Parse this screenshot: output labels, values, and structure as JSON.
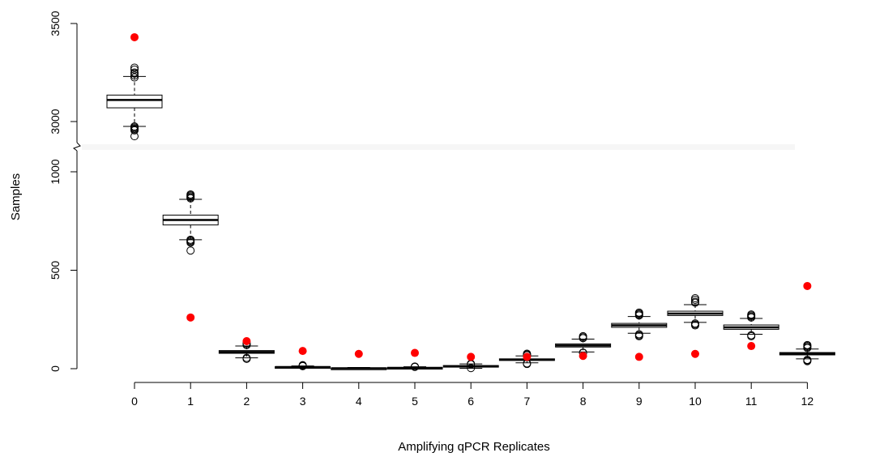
{
  "chart_data": {
    "type": "boxplot",
    "xlabel": "Amplifying qPCR Replicates",
    "ylabel": "Samples",
    "x_categories": [
      "0",
      "1",
      "2",
      "3",
      "4",
      "5",
      "6",
      "7",
      "8",
      "9",
      "10",
      "11",
      "12"
    ],
    "y_axis": {
      "broken": true,
      "segments": [
        {
          "range": [
            0,
            1050
          ],
          "ticks": [
            0,
            500,
            1000
          ],
          "tick_labels": [
            "0",
            "500",
            "1000"
          ]
        },
        {
          "range": [
            2880,
            3500
          ],
          "ticks": [
            3000,
            3500
          ],
          "tick_labels": [
            "3000",
            "3500"
          ]
        }
      ]
    },
    "boxes": [
      {
        "x": "0",
        "whisker_low": 2975,
        "q1": 3070,
        "median": 3110,
        "q3": 3135,
        "whisker_high": 3230,
        "outliers": [
          2955,
          2960,
          2965,
          2970,
          2975,
          2925,
          3225,
          3235,
          3245,
          3250,
          3265,
          3275
        ],
        "observed": 3430
      },
      {
        "x": "1",
        "whisker_low": 655,
        "q1": 730,
        "median": 755,
        "q3": 780,
        "whisker_high": 860,
        "outliers": [
          600,
          640,
          645,
          650,
          655,
          865,
          870,
          875,
          880,
          885
        ],
        "observed": 260
      },
      {
        "x": "2",
        "whisker_low": 55,
        "q1": 78,
        "median": 85,
        "q3": 92,
        "whisker_high": 115,
        "outliers": [
          50,
          55,
          120,
          125,
          130
        ],
        "observed": 140
      },
      {
        "x": "3",
        "whisker_low": 2,
        "q1": 6,
        "median": 8,
        "q3": 10,
        "whisker_high": 14,
        "outliers": [
          13,
          16,
          18
        ],
        "observed": 90
      },
      {
        "x": "4",
        "whisker_low": 0,
        "q1": 1,
        "median": 2,
        "q3": 3,
        "whisker_high": 6,
        "outliers": [],
        "observed": 75
      },
      {
        "x": "5",
        "whisker_low": 0,
        "q1": 2,
        "median": 4,
        "q3": 6,
        "whisker_high": 10,
        "outliers": [
          9,
          11
        ],
        "observed": 80
      },
      {
        "x": "6",
        "whisker_low": 2,
        "q1": 9,
        "median": 12,
        "q3": 16,
        "whisker_high": 24,
        "outliers": [
          3,
          22,
          25
        ],
        "observed": 60
      },
      {
        "x": "7",
        "whisker_low": 30,
        "q1": 42,
        "median": 46,
        "q3": 50,
        "whisker_high": 65,
        "outliers": [
          24,
          27,
          68,
          72,
          76
        ],
        "observed": 60
      },
      {
        "x": "8",
        "whisker_low": 85,
        "q1": 110,
        "median": 118,
        "q3": 126,
        "whisker_high": 150,
        "outliers": [
          80,
          82,
          155,
          160,
          165
        ],
        "observed": 65
      },
      {
        "x": "9",
        "whisker_low": 180,
        "q1": 210,
        "median": 220,
        "q3": 230,
        "whisker_high": 265,
        "outliers": [
          165,
          170,
          175,
          270,
          275,
          280,
          285
        ],
        "observed": 60
      },
      {
        "x": "10",
        "whisker_low": 235,
        "q1": 270,
        "median": 280,
        "q3": 292,
        "whisker_high": 325,
        "outliers": [
          220,
          225,
          230,
          335,
          340,
          350,
          358
        ],
        "observed": 75
      },
      {
        "x": "11",
        "whisker_low": 175,
        "q1": 200,
        "median": 210,
        "q3": 222,
        "whisker_high": 255,
        "outliers": [
          165,
          170,
          260,
          265,
          270,
          275
        ],
        "observed": 115
      },
      {
        "x": "12",
        "whisker_low": 50,
        "q1": 70,
        "median": 76,
        "q3": 82,
        "whisker_high": 100,
        "outliers": [
          38,
          42,
          45,
          105,
          110,
          115,
          120
        ],
        "observed": 420
      }
    ],
    "colors": {
      "box": "#000000",
      "box_fill": "#ffffff",
      "observed_point": "#ff0000"
    },
    "legend": "none",
    "grid": false
  }
}
